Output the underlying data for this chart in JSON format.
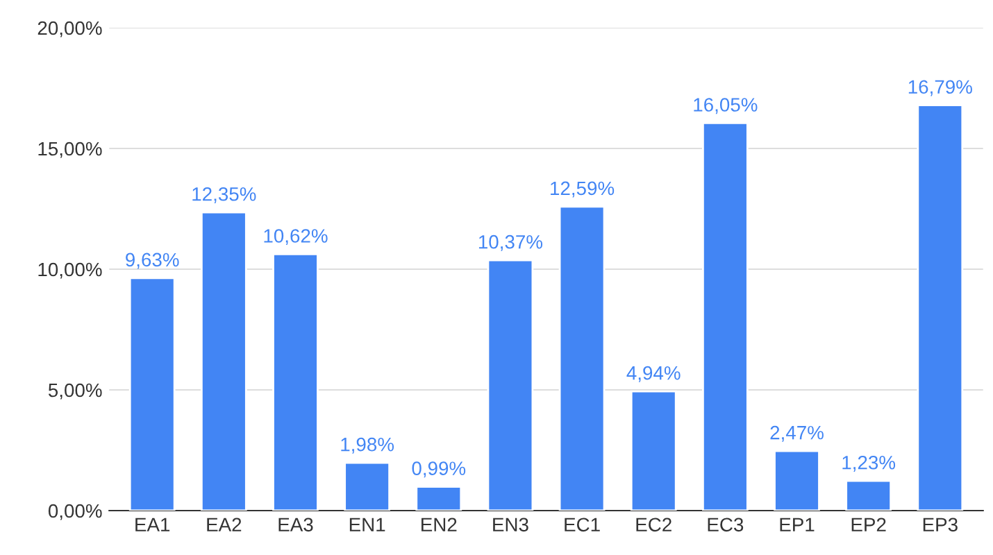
{
  "chart_data": {
    "type": "bar",
    "categories": [
      "EA1",
      "EA2",
      "EA3",
      "EN1",
      "EN2",
      "EN3",
      "EC1",
      "EC2",
      "EC3",
      "EP1",
      "EP2",
      "EP3"
    ],
    "values": [
      9.63,
      12.35,
      10.62,
      1.98,
      0.99,
      10.37,
      12.59,
      4.94,
      16.05,
      2.47,
      1.23,
      16.79
    ],
    "value_labels": [
      "9,63%",
      "12,35%",
      "10,62%",
      "1,98%",
      "0,99%",
      "10,37%",
      "12,59%",
      "4,94%",
      "16,05%",
      "2,47%",
      "1,23%",
      "16,79%"
    ],
    "color": "#4285f4",
    "ylim": [
      0,
      20
    ],
    "yticks": [
      {
        "value": 0,
        "label": "0,00%"
      },
      {
        "value": 5,
        "label": "5,00%"
      },
      {
        "value": 10,
        "label": "10,00%"
      },
      {
        "value": 15,
        "label": "15,00%"
      },
      {
        "value": 20,
        "label": "20,00%"
      }
    ],
    "grid": "y"
  }
}
